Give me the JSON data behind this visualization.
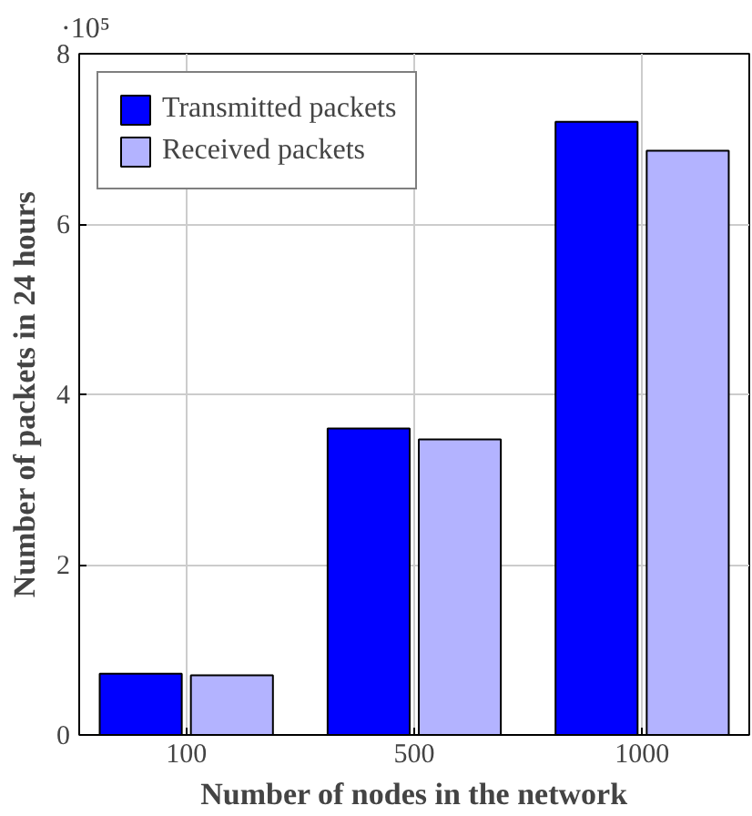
{
  "chart_data": {
    "type": "bar",
    "categories": [
      "100",
      "500",
      "1000"
    ],
    "series": [
      {
        "name": "Transmitted packets",
        "color": "#0000ff",
        "values": [
          0.72,
          3.6,
          7.2
        ]
      },
      {
        "name": "Received packets",
        "color": "#b3b3ff",
        "values": [
          0.7,
          3.47,
          6.86
        ]
      }
    ],
    "xlabel": "Number of nodes in the network",
    "ylabel": "Number of packets in 24 hours",
    "annotations": [
      "·10⁵"
    ],
    "ylim": [
      0,
      8
    ],
    "yticks": [
      0,
      2,
      4,
      6,
      8
    ],
    "grid": true,
    "legend": "top left"
  }
}
